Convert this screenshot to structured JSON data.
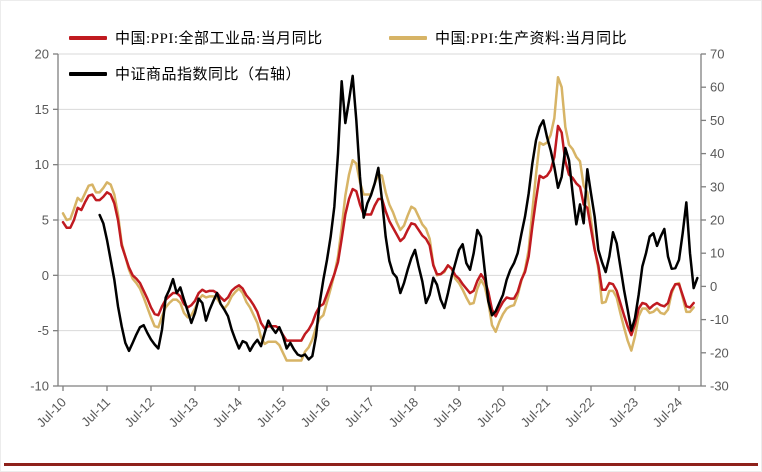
{
  "chart": {
    "legend_items": [
      {
        "label": "中国:PPI:全部工业品:当月同比",
        "color": "#c01a20"
      },
      {
        "label": "中国:PPI:生产资料:当月同比",
        "color": "#d7b466"
      },
      {
        "label": "中证商品指数同比（右轴）",
        "color": "#000000"
      }
    ],
    "colors": {
      "gridline": "#d9d9d9",
      "axis": "#7f7f7f",
      "tick_label": "#595959",
      "footer_rule": "#8e211b"
    }
  },
  "chart_data": {
    "type": "line",
    "title": "",
    "x_unit": "month",
    "x_start": "Jul-2010",
    "x_tick_labels": [
      "Jul-10",
      "Jul-11",
      "Jul-12",
      "Jul-13",
      "Jul-14",
      "Jul-15",
      "Jul-16",
      "Jul-17",
      "Jul-18",
      "Jul-19",
      "Jul-20",
      "Jul-21",
      "Jul-22",
      "Jul-23",
      "Jul-24"
    ],
    "y_left": {
      "min": -10,
      "max": 20,
      "ticks": [
        20,
        15,
        10,
        5,
        0,
        -5,
        -10
      ]
    },
    "y_right": {
      "min": -30,
      "max": 70,
      "ticks": [
        70,
        60,
        50,
        40,
        30,
        20,
        10,
        0,
        -10,
        -20,
        -30
      ]
    },
    "grid": "horizontal",
    "legend_position": "top-left",
    "series": [
      {
        "name": "中国:PPI:全部工业品:当月同比",
        "axis": "left",
        "color": "#c01a20",
        "start_month_index": 0,
        "values": [
          4.8,
          4.3,
          4.3,
          5.0,
          6.1,
          5.9,
          6.6,
          7.2,
          7.3,
          6.8,
          6.8,
          7.1,
          7.5,
          7.3,
          6.5,
          5.0,
          2.7,
          1.7,
          0.7,
          0.0,
          -0.3,
          -0.7,
          -1.4,
          -2.1,
          -2.9,
          -3.5,
          -3.6,
          -2.8,
          -2.2,
          -1.9,
          -1.6,
          -1.6,
          -1.9,
          -2.6,
          -2.9,
          -2.7,
          -2.3,
          -1.6,
          -1.3,
          -1.5,
          -1.4,
          -1.4,
          -1.6,
          -2.0,
          -2.3,
          -2.0,
          -1.4,
          -1.1,
          -0.9,
          -1.2,
          -1.8,
          -2.2,
          -2.7,
          -3.3,
          -4.3,
          -4.8,
          -4.6,
          -4.6,
          -4.6,
          -4.8,
          -5.4,
          -5.9,
          -5.9,
          -5.9,
          -5.9,
          -5.9,
          -5.3,
          -4.9,
          -4.3,
          -3.4,
          -2.8,
          -2.6,
          -1.7,
          -0.8,
          0.1,
          1.2,
          3.3,
          5.5,
          6.9,
          7.8,
          7.6,
          6.4,
          5.5,
          5.5,
          5.5,
          6.3,
          6.9,
          6.9,
          5.8,
          4.9,
          4.3,
          3.7,
          3.1,
          3.4,
          4.1,
          4.7,
          4.6,
          4.1,
          3.6,
          3.3,
          2.7,
          0.9,
          0.1,
          0.1,
          0.4,
          0.9,
          0.6,
          0.0,
          -0.3,
          -0.8,
          -1.2,
          -1.6,
          -1.4,
          -0.5,
          0.1,
          -0.4,
          -1.5,
          -3.1,
          -3.7,
          -3.0,
          -2.4,
          -2.0,
          -2.1,
          -2.1,
          -1.5,
          -0.4,
          0.3,
          1.7,
          4.4,
          6.8,
          9.0,
          8.8,
          9.0,
          9.5,
          10.7,
          13.5,
          12.9,
          10.3,
          9.1,
          8.8,
          8.3,
          8.0,
          6.4,
          6.1,
          4.2,
          2.3,
          0.9,
          -1.3,
          -1.3,
          -0.7,
          -0.8,
          -1.4,
          -2.5,
          -3.6,
          -4.6,
          -5.4,
          -4.4,
          -3.0,
          -2.5,
          -2.6,
          -3.0,
          -2.7,
          -2.5,
          -2.7,
          -2.8,
          -2.5,
          -1.4,
          -0.8,
          -0.8,
          -1.8,
          -2.8,
          -2.9,
          -2.5
        ]
      },
      {
        "name": "中国:PPI:生产资料:当月同比",
        "axis": "left",
        "color": "#d7b466",
        "start_month_index": 0,
        "values": [
          5.6,
          5.0,
          5.1,
          6.0,
          7.0,
          6.7,
          7.4,
          8.1,
          8.2,
          7.5,
          7.5,
          7.9,
          8.4,
          8.2,
          7.3,
          5.5,
          2.9,
          1.7,
          0.5,
          -0.3,
          -0.7,
          -1.2,
          -2.0,
          -2.9,
          -3.8,
          -4.6,
          -4.7,
          -3.7,
          -2.9,
          -2.5,
          -2.2,
          -2.2,
          -2.5,
          -3.4,
          -3.8,
          -3.6,
          -3.0,
          -2.2,
          -1.8,
          -2.0,
          -1.9,
          -1.9,
          -2.1,
          -2.6,
          -3.0,
          -2.6,
          -1.9,
          -1.5,
          -1.2,
          -1.6,
          -2.4,
          -2.9,
          -3.6,
          -4.3,
          -5.6,
          -6.2,
          -6.0,
          -6.0,
          -6.0,
          -6.3,
          -7.0,
          -7.7,
          -7.7,
          -7.7,
          -7.7,
          -7.7,
          -6.9,
          -6.5,
          -5.8,
          -4.7,
          -3.9,
          -3.6,
          -2.4,
          -1.2,
          0.1,
          1.7,
          4.3,
          7.2,
          9.1,
          10.4,
          10.1,
          8.4,
          7.3,
          7.3,
          7.3,
          8.3,
          9.1,
          9.0,
          7.5,
          6.4,
          5.7,
          4.8,
          4.1,
          4.5,
          5.4,
          6.2,
          6.0,
          5.3,
          4.6,
          4.2,
          3.3,
          1.0,
          0.0,
          0.1,
          0.3,
          0.9,
          0.6,
          -0.3,
          -0.7,
          -1.3,
          -2.0,
          -2.6,
          -2.5,
          -1.2,
          -0.4,
          -1.0,
          -2.4,
          -4.5,
          -5.1,
          -4.2,
          -3.5,
          -3.0,
          -2.8,
          -2.7,
          -1.8,
          -0.5,
          0.5,
          2.3,
          5.8,
          9.1,
          12.0,
          11.8,
          12.0,
          12.7,
          14.2,
          17.9,
          17.0,
          13.4,
          11.8,
          11.4,
          10.7,
          10.3,
          8.1,
          7.5,
          5.0,
          2.4,
          0.6,
          -2.5,
          -2.4,
          -1.4,
          -1.4,
          -2.0,
          -3.4,
          -4.7,
          -5.9,
          -6.8,
          -5.5,
          -3.7,
          -3.0,
          -3.0,
          -3.4,
          -3.3,
          -3.0,
          -3.4,
          -3.5,
          -3.1,
          -1.6,
          -0.8,
          -0.7,
          -2.0,
          -3.3,
          -3.3,
          -2.9
        ]
      },
      {
        "name": "中证商品指数同比（右轴）",
        "axis": "right",
        "color": "#000000",
        "start_month_index": 10,
        "values": [
          21.5,
          19,
          14,
          8,
          2,
          -6,
          -12,
          -17,
          -19.4,
          -17,
          -14.5,
          -12.3,
          -11.7,
          -14,
          -16,
          -17.5,
          -18.7,
          -13,
          -3.4,
          -1,
          2.2,
          -2,
          -0.3,
          -4,
          -7.4,
          -11,
          -8,
          -3.7,
          -5,
          -10.3,
          -7,
          -4.4,
          -2,
          -5.3,
          -7,
          -9,
          -13,
          -16,
          -18.7,
          -16.5,
          -17,
          -19.4,
          -17.5,
          -16.1,
          -18,
          -14,
          -10.3,
          -12.5,
          -14,
          -12.3,
          -15,
          -18.7,
          -17,
          -19,
          -20.5,
          -21,
          -20.5,
          -22,
          -21,
          -15,
          -5,
          2,
          8,
          15,
          24,
          40,
          61.8,
          49.2,
          56,
          63.4,
          50,
          33,
          20.7,
          25,
          27.5,
          31,
          35.7,
          26,
          15,
          7.7,
          4,
          2.7,
          -2,
          1,
          5,
          8.5,
          11,
          6,
          1.5,
          -5,
          -2.5,
          2.6,
          0.5,
          -4,
          -6.5,
          -2,
          3,
          7,
          11,
          12.7,
          7,
          5,
          10,
          17,
          15,
          5,
          -4.5,
          -8.7,
          -7.5,
          -5,
          -2.5,
          2,
          5,
          7,
          10,
          15.7,
          21,
          28,
          37,
          44,
          48,
          50,
          45,
          41,
          36,
          29.7,
          33,
          41.7,
          38,
          28,
          18.7,
          24.7,
          19,
          35.3,
          28,
          21,
          11,
          7.3,
          4.3,
          9,
          16.3,
          13,
          6,
          -1,
          -7,
          -13.3,
          -9.5,
          -2.5,
          6,
          10,
          15,
          16,
          12.2,
          15,
          17.3,
          9,
          5.3,
          5.5,
          8,
          16,
          25.3,
          10,
          -0.5,
          2.5
        ]
      }
    ]
  }
}
